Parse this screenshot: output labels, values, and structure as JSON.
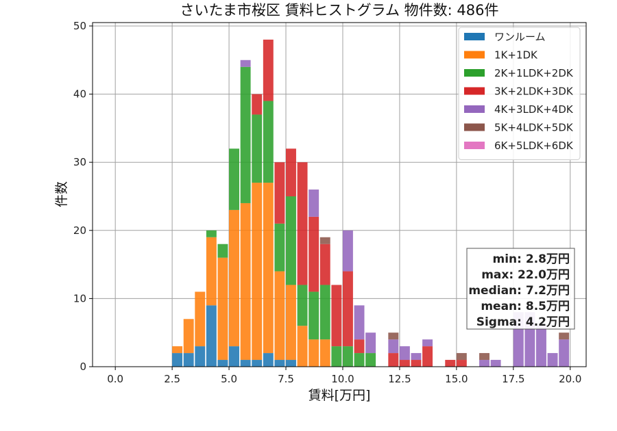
{
  "chart_data": {
    "type": "bar",
    "stacked": true,
    "title": "さいたま市桜区 賃料ヒストグラム 物件数: 486件",
    "xlabel": "賃料[万円]",
    "ylabel": "件数",
    "xlim": [
      -1.0,
      20.7
    ],
    "ylim": [
      0,
      50.5
    ],
    "xticks": [
      0.0,
      2.5,
      5.0,
      7.5,
      10.0,
      12.5,
      15.0,
      17.5,
      20.0
    ],
    "xtick_labels": [
      "0.0",
      "2.5",
      "5.0",
      "7.5",
      "10.0",
      "12.5",
      "15.0",
      "17.5",
      "20.0"
    ],
    "yticks": [
      0,
      10,
      20,
      30,
      40,
      50
    ],
    "ytick_labels": [
      "0",
      "10",
      "20",
      "30",
      "40",
      "50"
    ],
    "grid": true,
    "legend_position": "top-right",
    "bin_width": 0.5,
    "bins": [
      2.5,
      3.0,
      3.5,
      4.0,
      4.5,
      5.0,
      5.5,
      6.0,
      6.5,
      7.0,
      7.5,
      8.0,
      8.5,
      9.0,
      9.5,
      10.0,
      10.5,
      11.0,
      11.5,
      12.0,
      12.5,
      13.0,
      13.5,
      14.0,
      14.5,
      15.0,
      15.5,
      16.0,
      16.5,
      17.0,
      17.5,
      18.0,
      18.5,
      19.0,
      19.5
    ],
    "series": [
      {
        "name": "ワンルーム",
        "color": "#1f77b4",
        "values": [
          2,
          2,
          3,
          9,
          1,
          3,
          1,
          1,
          2,
          1,
          1,
          0,
          0,
          0,
          0,
          0,
          0,
          0,
          0,
          0,
          0,
          0,
          0,
          0,
          0,
          0,
          0,
          0,
          0,
          0,
          0,
          0,
          0,
          0,
          0
        ]
      },
      {
        "name": "1K+1DK",
        "color": "#ff7f0e",
        "values": [
          1,
          5,
          8,
          10,
          15,
          20,
          23,
          26,
          25,
          13,
          11,
          6,
          4,
          4,
          0,
          0,
          0,
          0,
          0,
          0,
          0,
          0,
          0,
          0,
          0,
          0,
          0,
          0,
          0,
          0,
          0,
          0,
          0,
          0,
          0
        ]
      },
      {
        "name": "2K+1LDK+2DK",
        "color": "#2ca02c",
        "values": [
          0,
          0,
          0,
          1,
          2,
          9,
          20,
          10,
          12,
          7,
          13,
          6,
          7,
          8,
          3,
          3,
          2,
          2,
          0,
          0,
          0,
          0,
          0,
          0,
          0,
          0,
          0,
          0,
          0,
          0,
          0,
          0,
          0,
          0,
          0
        ]
      },
      {
        "name": "3K+2LDK+3DK",
        "color": "#d62728",
        "values": [
          0,
          0,
          0,
          0,
          0,
          0,
          0,
          3,
          9,
          9,
          7,
          18,
          11,
          6,
          9,
          11,
          2,
          0,
          0,
          2,
          1,
          1,
          3,
          0,
          1,
          1,
          0,
          0,
          0,
          0,
          0,
          0,
          0,
          0,
          0
        ]
      },
      {
        "name": "4K+3LDK+4DK",
        "color": "#9467bd",
        "values": [
          0,
          0,
          0,
          0,
          0,
          0,
          1,
          0,
          0,
          0,
          0,
          0,
          4,
          0,
          0,
          6,
          5,
          3,
          0,
          2,
          2,
          1,
          1,
          0,
          0,
          0,
          0,
          1,
          1,
          0,
          8,
          8,
          6,
          2,
          4
        ]
      },
      {
        "name": "5K+4LDK+5DK",
        "color": "#8c564b",
        "values": [
          0,
          0,
          0,
          0,
          0,
          0,
          0,
          0,
          0,
          0,
          0,
          0,
          0,
          1,
          0,
          0,
          0,
          0,
          0,
          1,
          0,
          0,
          0,
          0,
          0,
          1,
          0,
          1,
          0,
          0,
          0,
          0,
          0,
          0,
          1
        ]
      },
      {
        "name": "6K+5LDK+6DK",
        "color": "#e377c2",
        "values": [
          0,
          0,
          0,
          0,
          0,
          0,
          0,
          0,
          0,
          0,
          0,
          0,
          0,
          0,
          0,
          0,
          0,
          0,
          0,
          0,
          0,
          0,
          0,
          0,
          0,
          0,
          0,
          0,
          0,
          0,
          0,
          0,
          0,
          0,
          0
        ]
      }
    ],
    "stats": [
      "min: 2.8万円",
      "max: 22.0万円",
      "median: 7.2万円",
      "mean: 8.5万円",
      "Sigma: 4.2万円"
    ]
  }
}
